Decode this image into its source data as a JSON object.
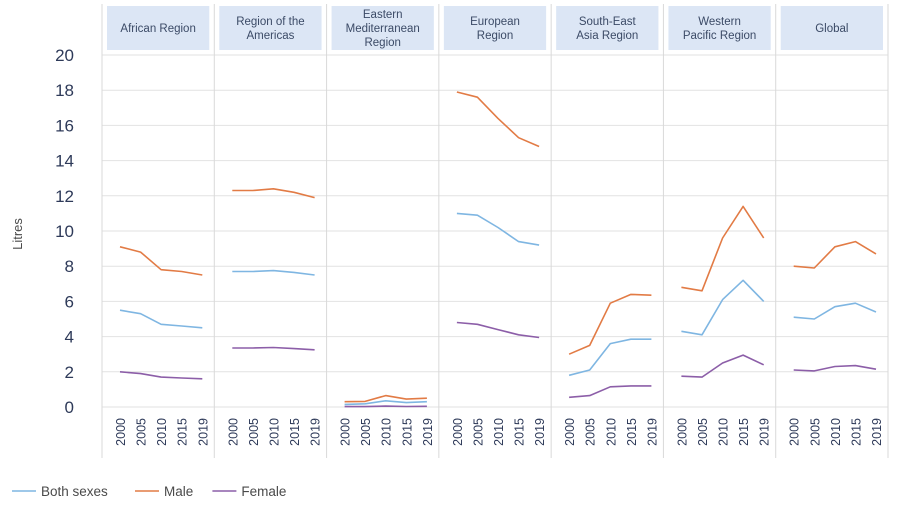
{
  "chart_data": {
    "type": "line",
    "ylabel": "Litres",
    "ylim": [
      0,
      20
    ],
    "yticks": [
      "0",
      "2",
      "4",
      "6",
      "8",
      "10",
      "12",
      "14",
      "16",
      "18",
      "20"
    ],
    "x": [
      "2000",
      "2005",
      "2010",
      "2015",
      "2019"
    ],
    "grid": true,
    "legend_position": "bottom-left",
    "series_styles": [
      {
        "name": "Both sexes",
        "color": "#7fb6e2"
      },
      {
        "name": "Male",
        "color": "#e27b45"
      },
      {
        "name": "Female",
        "color": "#8c5ea8"
      }
    ],
    "panels": [
      {
        "title": "African Region",
        "series": [
          {
            "name": "Both sexes",
            "values": [
              5.5,
              5.3,
              4.7,
              4.6,
              4.5
            ]
          },
          {
            "name": "Male",
            "values": [
              9.1,
              8.8,
              7.8,
              7.7,
              7.5
            ]
          },
          {
            "name": "Female",
            "values": [
              2.0,
              1.9,
              1.7,
              1.65,
              1.6
            ]
          }
        ]
      },
      {
        "title": "Region of the Americas",
        "series": [
          {
            "name": "Both sexes",
            "values": [
              7.7,
              7.7,
              7.75,
              7.65,
              7.5
            ]
          },
          {
            "name": "Male",
            "values": [
              12.3,
              12.3,
              12.4,
              12.2,
              11.9
            ]
          },
          {
            "name": "Female",
            "values": [
              3.35,
              3.35,
              3.38,
              3.32,
              3.25
            ]
          }
        ]
      },
      {
        "title": "Eastern Mediterranean Region",
        "series": [
          {
            "name": "Both sexes",
            "values": [
              0.15,
              0.18,
              0.35,
              0.25,
              0.3
            ]
          },
          {
            "name": "Male",
            "values": [
              0.3,
              0.32,
              0.65,
              0.45,
              0.5
            ]
          },
          {
            "name": "Female",
            "values": [
              0.02,
              0.02,
              0.05,
              0.03,
              0.04
            ]
          }
        ]
      },
      {
        "title": "European Region",
        "series": [
          {
            "name": "Both sexes",
            "values": [
              11.0,
              10.9,
              10.2,
              9.4,
              9.2
            ]
          },
          {
            "name": "Male",
            "values": [
              17.9,
              17.6,
              16.4,
              15.3,
              14.8
            ]
          },
          {
            "name": "Female",
            "values": [
              4.8,
              4.7,
              4.4,
              4.1,
              3.95
            ]
          }
        ]
      },
      {
        "title": "South-East Asia Region",
        "series": [
          {
            "name": "Both sexes",
            "values": [
              1.8,
              2.1,
              3.6,
              3.85,
              3.85
            ]
          },
          {
            "name": "Male",
            "values": [
              3.0,
              3.5,
              5.9,
              6.4,
              6.35
            ]
          },
          {
            "name": "Female",
            "values": [
              0.55,
              0.65,
              1.15,
              1.2,
              1.2
            ]
          }
        ]
      },
      {
        "title": "Western Pacific Region",
        "series": [
          {
            "name": "Both sexes",
            "values": [
              4.3,
              4.1,
              6.1,
              7.2,
              6.0
            ]
          },
          {
            "name": "Male",
            "values": [
              6.8,
              6.6,
              9.6,
              11.4,
              9.6
            ]
          },
          {
            "name": "Female",
            "values": [
              1.75,
              1.7,
              2.5,
              2.95,
              2.4
            ]
          }
        ]
      },
      {
        "title": "Global",
        "series": [
          {
            "name": "Both sexes",
            "values": [
              5.1,
              5.0,
              5.7,
              5.9,
              5.4
            ]
          },
          {
            "name": "Male",
            "values": [
              8.0,
              7.9,
              9.1,
              9.4,
              8.7
            ]
          },
          {
            "name": "Female",
            "values": [
              2.1,
              2.05,
              2.3,
              2.35,
              2.15
            ]
          }
        ]
      }
    ]
  }
}
